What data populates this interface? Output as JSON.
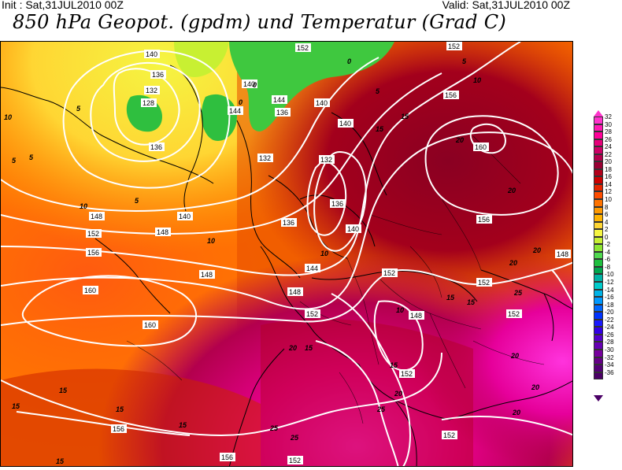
{
  "header": {
    "init": "Init : Sat,31JUL2010 00Z",
    "valid": "Valid: Sat,31JUL2010 00Z",
    "title": "850 hPa Geopot. (gpdm) und Temperatur (Grad C)"
  },
  "legend": {
    "labels": [
      "32",
      "30",
      "28",
      "26",
      "24",
      "22",
      "20",
      "18",
      "16",
      "14",
      "12",
      "10",
      "8",
      "6",
      "4",
      "2",
      "0",
      "-2",
      "-4",
      "-6",
      "-8",
      "-10",
      "-12",
      "-14",
      "-16",
      "-18",
      "-20",
      "-22",
      "-24",
      "-26",
      "-28",
      "-30",
      "-32",
      "-34",
      "-36"
    ],
    "colors": [
      "#ff33cc",
      "#ff1ab3",
      "#ff0099",
      "#e6007a",
      "#cc0066",
      "#b3004d",
      "#990033",
      "#b3001a",
      "#cc0000",
      "#e62600",
      "#ff4d00",
      "#ff7300",
      "#ff9900",
      "#ffb300",
      "#ffd633",
      "#f5f542",
      "#c8f032",
      "#8ce632",
      "#4fd94f",
      "#1fbf3f",
      "#00a64d",
      "#00b3a6",
      "#00cccc",
      "#00b3e6",
      "#0099ff",
      "#0066ff",
      "#0033ff",
      "#1a1aff",
      "#3300e6",
      "#5500cc",
      "#6600b3",
      "#77009e",
      "#660088",
      "#550077",
      "#4b0066"
    ]
  },
  "geopotential_labels": [
    "140",
    "136",
    "132",
    "128",
    "136",
    "140",
    "144",
    "136",
    "140",
    "132",
    "136",
    "140",
    "144",
    "140",
    "148",
    "152",
    "156",
    "160",
    "152",
    "156",
    "160",
    "148",
    "152",
    "156",
    "160",
    "148",
    "152",
    "156",
    "152",
    "148",
    "152",
    "152",
    "156",
    "152",
    "136",
    "140",
    "132",
    "144",
    "148",
    "152",
    "148",
    "152"
  ],
  "temperature_labels": [
    "10",
    "5",
    "5",
    "5",
    "0",
    "0",
    "5",
    "10",
    "5",
    "0",
    "10",
    "15",
    "20",
    "15",
    "10",
    "20",
    "15",
    "15",
    "20",
    "20",
    "20",
    "25",
    "25",
    "20",
    "15",
    "15",
    "25",
    "25",
    "20",
    "15",
    "15",
    "15",
    "20",
    "20",
    "10",
    "15",
    "15",
    "5",
    "10"
  ]
}
